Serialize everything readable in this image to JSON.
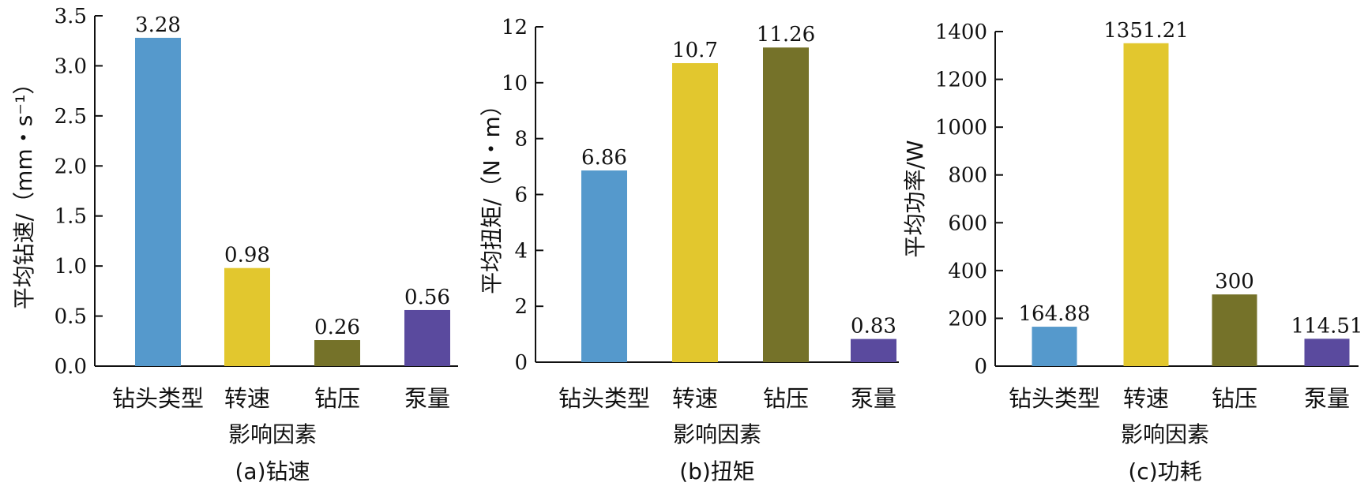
{
  "chart_data": [
    {
      "type": "bar",
      "caption": "(a)钻速",
      "xlabel": "影响因素",
      "ylabel": "平均钻速/（mm・s⁻¹）",
      "categories": [
        "钻头类型",
        "转速",
        "钻压",
        "泵量"
      ],
      "values": [
        3.28,
        0.98,
        0.26,
        0.56
      ],
      "value_labels": [
        "3.28",
        "0.98",
        "0.26",
        "0.56"
      ],
      "colors": [
        "#5599cc",
        "#e2c72e",
        "#757229",
        "#5a4a9e"
      ],
      "ylim": [
        0,
        3.5
      ],
      "yticks": [
        "0.0",
        "0.5",
        "1.0",
        "1.5",
        "2.0",
        "2.5",
        "3.0",
        "3.5"
      ],
      "grid": false,
      "legend": "none"
    },
    {
      "type": "bar",
      "caption": "(b)扭矩",
      "xlabel": "影响因素",
      "ylabel": "平均扭矩/（N・m）",
      "categories": [
        "钻头类型",
        "转速",
        "钻压",
        "泵量"
      ],
      "values": [
        6.86,
        10.7,
        11.26,
        0.83
      ],
      "value_labels": [
        "6.86",
        "10.7",
        "11.26",
        "0.83"
      ],
      "colors": [
        "#5599cc",
        "#e2c72e",
        "#757229",
        "#5a4a9e"
      ],
      "ylim": [
        0,
        12
      ],
      "yticks": [
        "0",
        "2",
        "4",
        "6",
        "8",
        "10",
        "12"
      ],
      "grid": false,
      "legend": "none"
    },
    {
      "type": "bar",
      "caption": "(c)功耗",
      "xlabel": "影响因素",
      "ylabel": "平均功率/W",
      "categories": [
        "钻头类型",
        "转速",
        "钻压",
        "泵量"
      ],
      "values": [
        164.88,
        1351.21,
        300,
        114.51
      ],
      "value_labels": [
        "164.88",
        "1351.21",
        "300",
        "114.51"
      ],
      "colors": [
        "#5599cc",
        "#e2c72e",
        "#757229",
        "#5a4a9e"
      ],
      "ylim": [
        0,
        1400
      ],
      "yticks": [
        "0",
        "200",
        "400",
        "600",
        "800",
        "1000",
        "1200",
        "1400"
      ],
      "grid": false,
      "legend": "none"
    }
  ]
}
